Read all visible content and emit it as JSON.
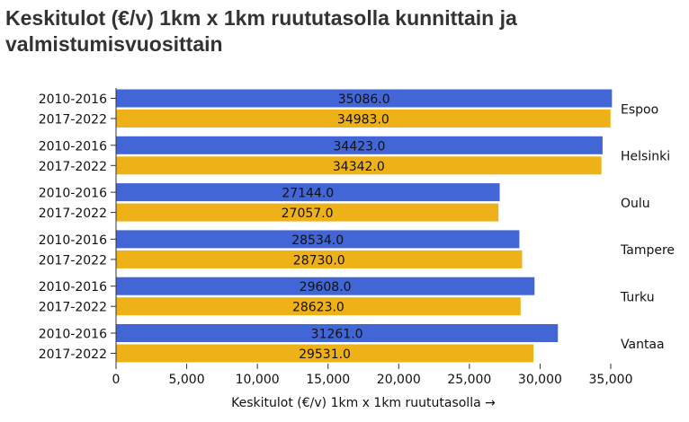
{
  "title": "Keskitulot (€/v) 1km x 1km ruututasolla kunnittain ja valmistumisvuosittain",
  "chart_data": {
    "type": "bar",
    "orientation": "horizontal",
    "title": "Keskitulot (€/v) 1km x 1km ruututasolla kunnittain ja valmistumisvuosittain",
    "xlabel": "Keskitulot (€/v) 1km x 1km ruututasolla →",
    "ylabel": "",
    "xlim": [
      0,
      35000
    ],
    "x_ticks": [
      0,
      5000,
      10000,
      15000,
      20000,
      25000,
      30000,
      35000
    ],
    "x_tick_labels": [
      "0",
      "5,000",
      "10,000",
      "15,000",
      "20,000",
      "25,000",
      "30,000",
      "35,000"
    ],
    "grid": false,
    "legend": "none",
    "colors": {
      "2010-2016": "#4266d6",
      "2017-2022": "#efb118"
    },
    "groups": [
      {
        "name": "Espoo",
        "bars": [
          {
            "label": "2010-2016",
            "value": 35086.0,
            "value_label": "35086.0"
          },
          {
            "label": "2017-2022",
            "value": 34983.0,
            "value_label": "34983.0"
          }
        ]
      },
      {
        "name": "Helsinki",
        "bars": [
          {
            "label": "2010-2016",
            "value": 34423.0,
            "value_label": "34423.0"
          },
          {
            "label": "2017-2022",
            "value": 34342.0,
            "value_label": "34342.0"
          }
        ]
      },
      {
        "name": "Oulu",
        "bars": [
          {
            "label": "2010-2016",
            "value": 27144.0,
            "value_label": "27144.0"
          },
          {
            "label": "2017-2022",
            "value": 27057.0,
            "value_label": "27057.0"
          }
        ]
      },
      {
        "name": "Tampere",
        "bars": [
          {
            "label": "2010-2016",
            "value": 28534.0,
            "value_label": "28534.0"
          },
          {
            "label": "2017-2022",
            "value": 28730.0,
            "value_label": "28730.0"
          }
        ]
      },
      {
        "name": "Turku",
        "bars": [
          {
            "label": "2010-2016",
            "value": 29608.0,
            "value_label": "29608.0"
          },
          {
            "label": "2017-2022",
            "value": 28623.0,
            "value_label": "28623.0"
          }
        ]
      },
      {
        "name": "Vantaa",
        "bars": [
          {
            "label": "2010-2016",
            "value": 31261.0,
            "value_label": "31261.0"
          },
          {
            "label": "2017-2022",
            "value": 29531.0,
            "value_label": "29531.0"
          }
        ]
      }
    ]
  }
}
